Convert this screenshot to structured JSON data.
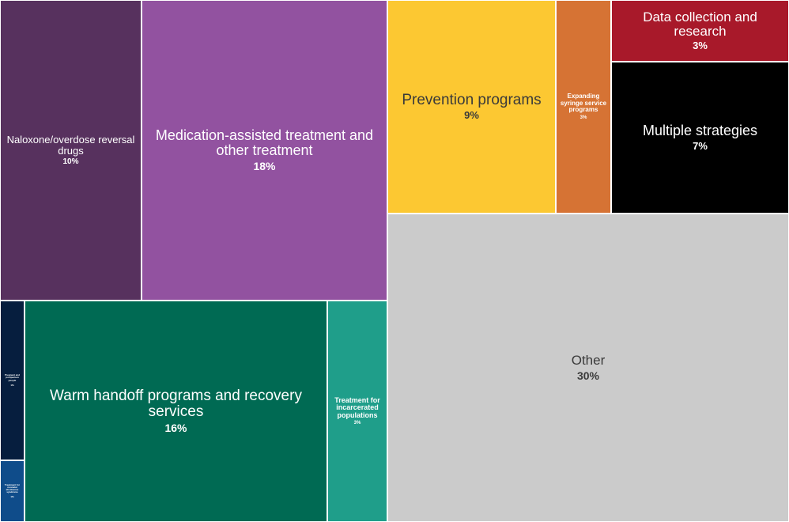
{
  "chart_data": {
    "type": "treemap",
    "title": "",
    "unit": "%",
    "items": [
      {
        "label": "Naloxone/overdose reversal drugs",
        "value": 10,
        "value_label": "10%",
        "color": "#57315e",
        "text_color": "#ffffff"
      },
      {
        "label": "Medication-assisted treatment and other treatment",
        "value": 18,
        "value_label": "18%",
        "color": "#9252a0",
        "text_color": "#ffffff"
      },
      {
        "label": "Pregnant and postpartum people",
        "value": 1,
        "value_label": "1%",
        "color": "#061e3e",
        "text_color": "#ffffff"
      },
      {
        "label": "Treatment for neonatal abstinence syndrome",
        "value": 1,
        "value_label": "1%",
        "color": "#0f4c8a",
        "text_color": "#ffffff"
      },
      {
        "label": "Warm handoff programs and recovery services",
        "value": 16,
        "value_label": "16%",
        "color": "#006a53",
        "text_color": "#ffffff"
      },
      {
        "label": "Treatment for incarcerated populations",
        "value": 3,
        "value_label": "3%",
        "color": "#1f9e8a",
        "text_color": "#ffffff"
      },
      {
        "label": "Prevention programs",
        "value": 9,
        "value_label": "9%",
        "color": "#fcc832",
        "text_color": "#3a3a3a"
      },
      {
        "label": "Expanding syringe service programs",
        "value": 3,
        "value_label": "3%",
        "color": "#d67334",
        "text_color": "#ffffff"
      },
      {
        "label": "Data collection and research",
        "value": 3,
        "value_label": "3%",
        "color": "#a8192a",
        "text_color": "#ffffff"
      },
      {
        "label": "Multiple strategies",
        "value": 7,
        "value_label": "7%",
        "color": "#000000",
        "text_color": "#ffffff"
      },
      {
        "label": "Other",
        "value": 30,
        "value_label": "30%",
        "color": "#cbcbcb",
        "text_color": "#3a3a3a"
      }
    ]
  }
}
